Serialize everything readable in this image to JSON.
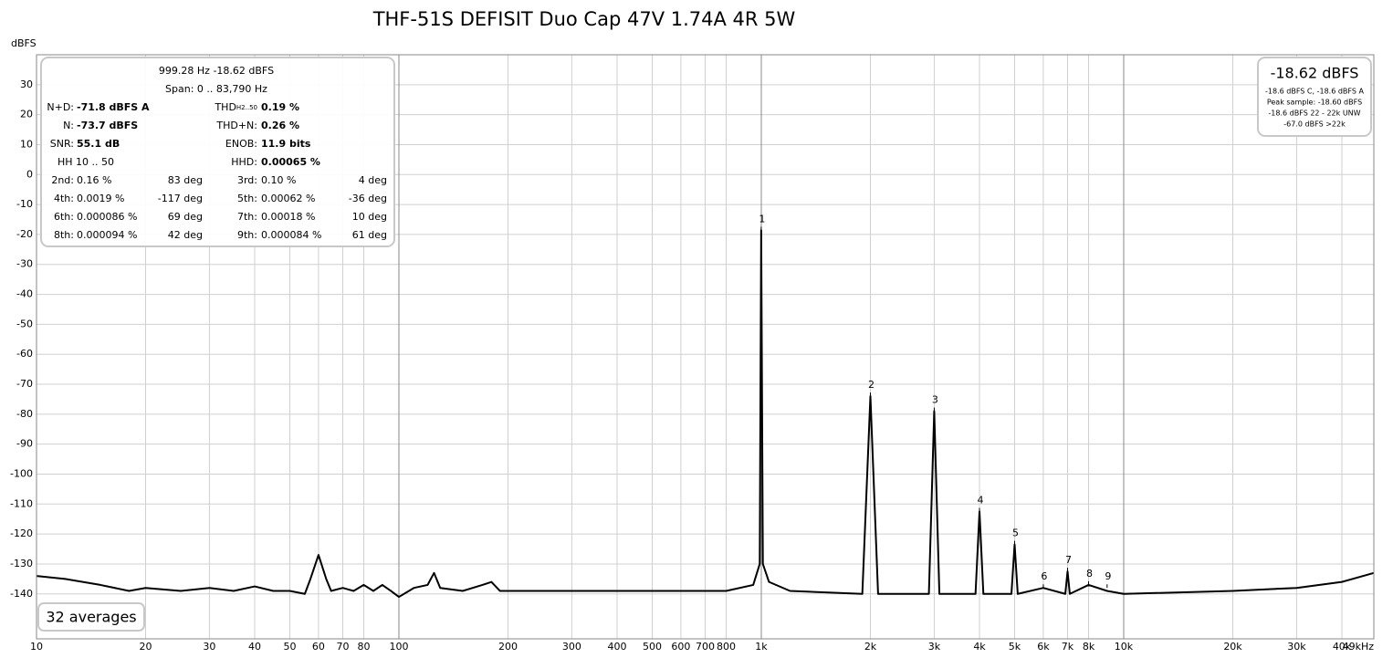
{
  "chart_data": {
    "type": "line",
    "title": "THF-51S DEFISIT Duo Cap 47V 1.74A 4R 5W",
    "y_label": "dBFS",
    "log_x": true,
    "grid": true,
    "xlim": [
      10,
      49000
    ],
    "ylim": [
      -155,
      40
    ],
    "xticks": [
      10,
      20,
      30,
      40,
      50,
      60,
      70,
      80,
      100,
      200,
      300,
      400,
      500,
      600,
      700,
      800,
      {
        "value": 1000,
        "label": "1k"
      },
      {
        "value": 2000,
        "label": "2k"
      },
      {
        "value": 3000,
        "label": "3k"
      },
      {
        "value": 4000,
        "label": "4k"
      },
      {
        "value": 5000,
        "label": "5k"
      },
      {
        "value": 6000,
        "label": "6k"
      },
      {
        "value": 7000,
        "label": "7k"
      },
      {
        "value": 8000,
        "label": "8k"
      },
      {
        "value": 10000,
        "label": "10k"
      },
      {
        "value": 20000,
        "label": "20k"
      },
      {
        "value": 30000,
        "label": "30k"
      },
      {
        "value": 40000,
        "label": "40k"
      },
      {
        "value": 49000,
        "label": "49kHz"
      }
    ],
    "yticks": [
      30,
      20,
      10,
      0,
      -10,
      -20,
      -30,
      -40,
      -50,
      -60,
      -70,
      -80,
      -90,
      -100,
      -110,
      -120,
      -130,
      -140
    ],
    "x": [
      10,
      12,
      15,
      18,
      20,
      25,
      30,
      35,
      40,
      45,
      50,
      55,
      57,
      60,
      63,
      65,
      70,
      75,
      80,
      85,
      90,
      95,
      100,
      110,
      120,
      125,
      130,
      150,
      170,
      180,
      190,
      200,
      300,
      500,
      800,
      950,
      990,
      999.28,
      1010,
      1050,
      1200,
      1900,
      2000,
      2100,
      2900,
      3000,
      3100,
      3900,
      4000,
      4100,
      4900,
      5000,
      5100,
      6000,
      6900,
      7000,
      7100,
      8000,
      9000,
      10000,
      20000,
      30000,
      40000,
      49000
    ],
    "series": [
      {
        "color": "#000000",
        "values": [
          -134,
          -135,
          -137,
          -139,
          -138,
          -139,
          -138,
          -139,
          -137.5,
          -139,
          -139,
          -140,
          -135,
          -127,
          -135,
          -139,
          -138,
          -139,
          -137,
          -139,
          -137,
          -139,
          -141,
          -138,
          -137,
          -133,
          -138,
          -139,
          -137,
          -136,
          -139,
          -139,
          -139,
          -139,
          -139,
          -137,
          -130,
          -18.62,
          -130,
          -136,
          -139,
          -140,
          -74,
          -140,
          -140,
          -79,
          -140,
          -140,
          -112.5,
          -140,
          -140,
          -123.5,
          -140,
          -138,
          -140,
          -132.5,
          -140,
          -137,
          -139,
          -140,
          -139,
          -138,
          -136,
          -133
        ]
      }
    ],
    "harmonics": [
      {
        "label": "1",
        "freq": 999.28,
        "level": -18.62
      },
      {
        "label": "2",
        "freq": 2000,
        "level": -74
      },
      {
        "label": "3",
        "freq": 3000,
        "level": -79
      },
      {
        "label": "4",
        "freq": 4000,
        "level": -112.5
      },
      {
        "label": "5",
        "freq": 5000,
        "level": -123.5
      },
      {
        "label": "6",
        "freq": 6000,
        "level": -138
      },
      {
        "label": "7",
        "freq": 7000,
        "level": -132.5
      },
      {
        "label": "8",
        "freq": 8000,
        "level": -137
      },
      {
        "label": "9",
        "freq": 9000,
        "level": -138
      }
    ],
    "info_panel": {
      "header": "999.28 Hz  -18.62 dBFS",
      "span": "Span: 0 .. 83,790 Hz",
      "metrics": [
        {
          "label1": "N+D:",
          "value1": "-71.8 dBFS A",
          "label2": "THD",
          "label2_sub": "H2..50",
          "value2": "0.19 %"
        },
        {
          "label1": "N:",
          "value1": "-73.7 dBFS",
          "label2": "THD+N:",
          "value2": "0.26 %"
        },
        {
          "label1": "SNR:",
          "value1": "55.1 dB",
          "label2": "ENOB:",
          "value2": "11.9 bits"
        },
        {
          "label1": "HH 10 .. 50",
          "label2": "HHD:",
          "value2": "0.00065 %"
        }
      ],
      "harmonic_rows": [
        [
          "2nd:",
          "0.16 %",
          "83 deg",
          "3rd:",
          "0.10 %",
          "4 deg"
        ],
        [
          "4th:",
          "0.0019 %",
          "-117 deg",
          "5th:",
          "0.00062 %",
          "-36 deg"
        ],
        [
          "6th:",
          "0.000086 %",
          "69 deg",
          "7th:",
          "0.00018 %",
          "10 deg"
        ],
        [
          "8th:",
          "0.000094 %",
          "42 deg",
          "9th:",
          "0.000084 %",
          "61 deg"
        ]
      ]
    },
    "level_panel": {
      "main": "-18.62 dBFS",
      "lines": [
        "-18.6 dBFS C, -18.6 dBFS A",
        "Peak sample: -18.60 dBFS",
        "-18.6 dBFS 22 - 22k UNW",
        "-67.0 dBFS >22k"
      ]
    },
    "averages": "32 averages"
  }
}
